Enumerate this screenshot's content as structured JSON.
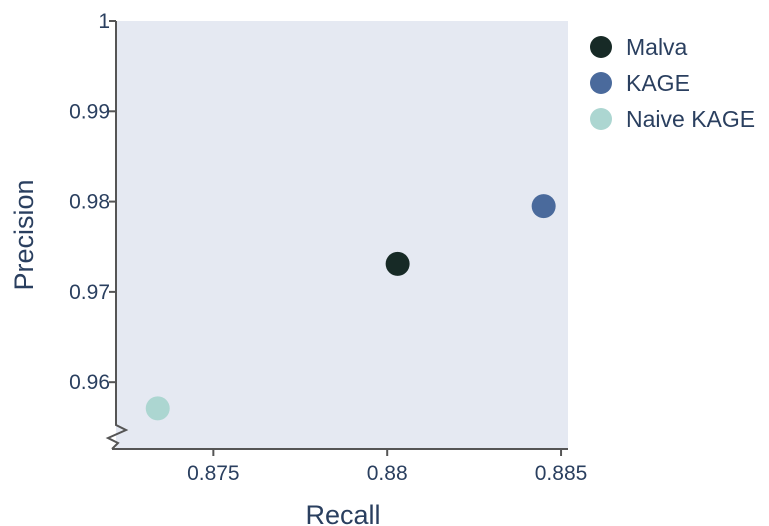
{
  "chart_data": {
    "type": "scatter",
    "title": "",
    "xlabel": "Recall",
    "ylabel": "Precision",
    "xlim": [
      0.8722,
      0.8852
    ],
    "ylim": [
      0.9526,
      1.0
    ],
    "xticks": [
      0.875,
      0.88,
      0.885
    ],
    "xtick_labels": [
      "0.875",
      "0.88",
      "0.885"
    ],
    "yticks": [
      0.96,
      0.97,
      0.98,
      0.99,
      1.0
    ],
    "ytick_labels": [
      "0.96",
      "0.97",
      "0.98",
      "0.99",
      "1"
    ],
    "grid": false,
    "y_axis_break": true,
    "legend_position": "right",
    "series": [
      {
        "name": "Malva",
        "color": "#172a26",
        "points": [
          {
            "x": 0.8803,
            "y": 0.9731
          }
        ]
      },
      {
        "name": "KAGE",
        "color": "#4a6a9c",
        "points": [
          {
            "x": 0.8845,
            "y": 0.9795
          }
        ]
      },
      {
        "name": "Naive KAGE",
        "color": "#acd6d1",
        "points": [
          {
            "x": 0.8734,
            "y": 0.9571
          }
        ]
      }
    ]
  },
  "style": {
    "plot_background": "#e5e9f2",
    "axis_color": "#555555",
    "text_color": "#2a3f5f"
  }
}
